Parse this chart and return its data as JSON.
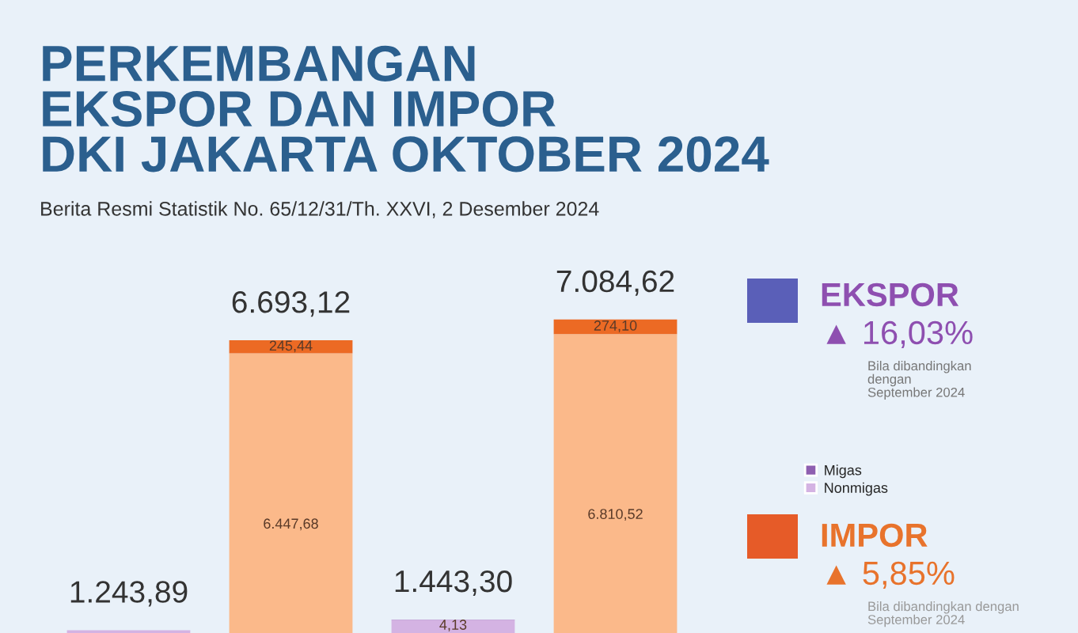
{
  "chart_data": {
    "type": "bar",
    "title": "PERKEMBANGAN\nEKSPOR DAN IMPOR\nDKI JAKARTA OKTOBER 2024",
    "subtitle": "Berita Resmi Statistik No. 65/12/31/Th. XXVI, 2 Desember 2024",
    "categories": [
      null,
      null,
      null,
      null
    ],
    "stacked": true,
    "series": [
      {
        "name": "Nonmigas",
        "color": "#d4b3e3",
        "colors": [
          "#d4b3e3",
          "#fbb98a",
          "#d4b3e3",
          "#fbb98a"
        ],
        "values": [
          1243.86,
          6447.68,
          1439.17,
          6810.52
        ],
        "value_labels": [
          null,
          "6.447,68",
          null,
          "6.810,52"
        ]
      },
      {
        "name": "Migas",
        "color": "#8e5fb0",
        "colors": [
          "#8e5fb0",
          "#ec6a24",
          "#8e5fb0",
          "#ec6a24"
        ],
        "values": [
          0.03,
          245.44,
          4.13,
          274.1
        ],
        "value_labels": [
          null,
          "245,44",
          "4,13",
          "274,10"
        ]
      }
    ],
    "totals": [
      "1.243,89",
      "6.693,12",
      "1.443,30",
      "7.084,62"
    ],
    "tick_labels": false,
    "grid": false,
    "legend": "right",
    "annotations": [
      "EKSPOR",
      "▲ 16,03%",
      "Bila dibandingkan\ndengan\nSeptember 2024",
      "IMPOR",
      "▲ 5,85%",
      "Bila dibandingkan dengan September 2024"
    ]
  }
}
